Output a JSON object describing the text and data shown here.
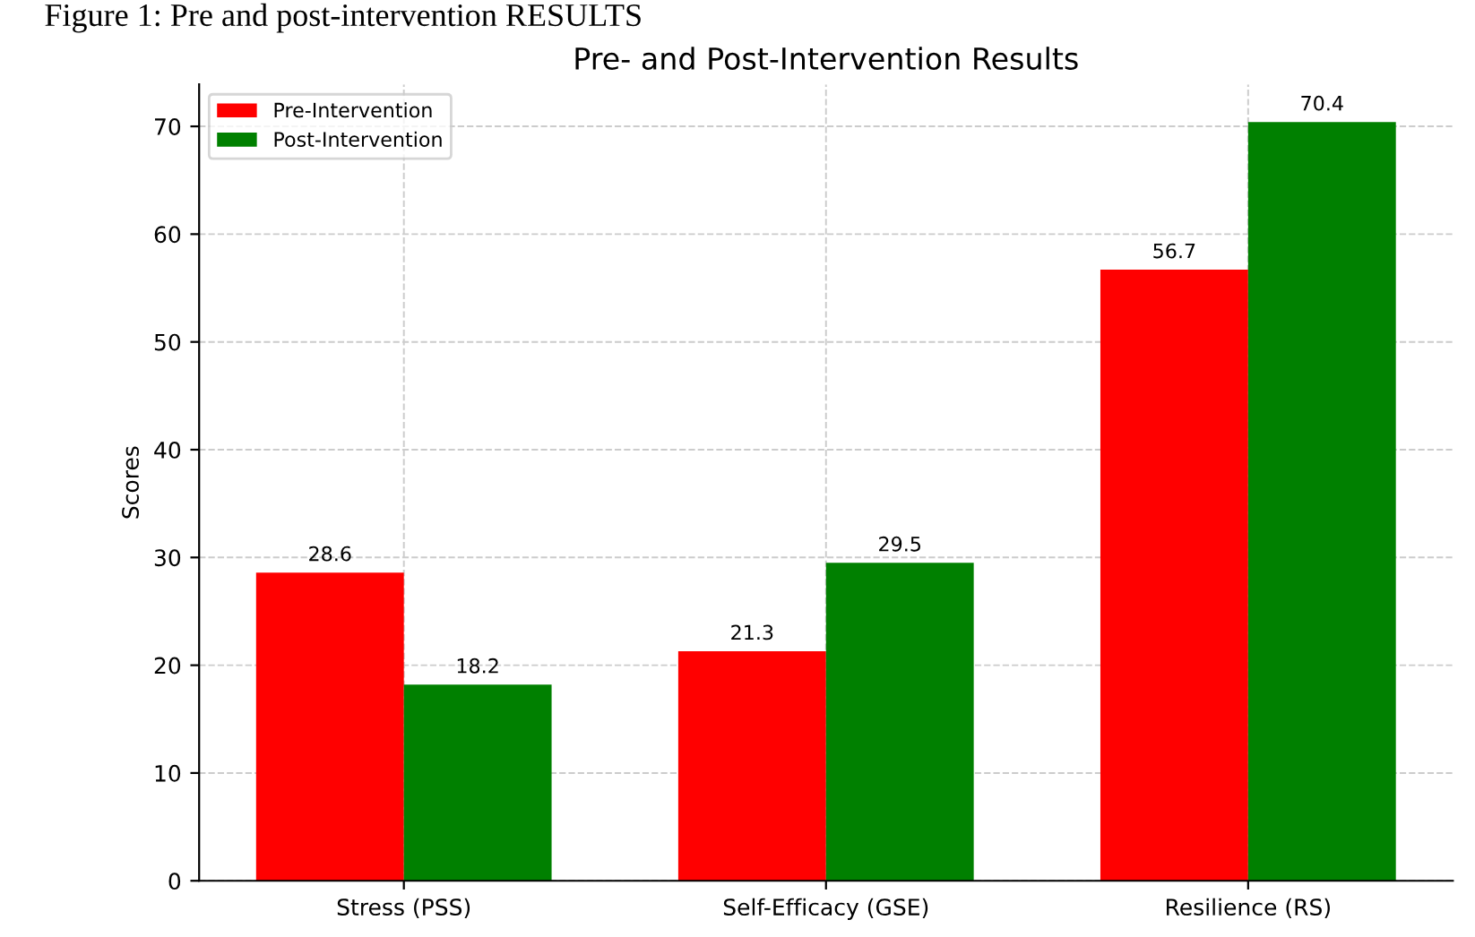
{
  "chart_data": {
    "type": "bar",
    "title": "Pre- and Post-Intervention Results",
    "ylabel": "Scores",
    "annotations": [
      "Figure 1: Pre and post-intervention RESULTS"
    ],
    "categories": [
      "Stress (PSS)",
      "Self-Efficacy (GSE)",
      "Resilience (RS)"
    ],
    "series": [
      {
        "name": "Pre-Intervention",
        "color": "#ff0000",
        "values": [
          28.6,
          21.3,
          56.7
        ]
      },
      {
        "name": "Post-Intervention",
        "color": "#008000",
        "values": [
          18.2,
          29.5,
          70.4
        ]
      }
    ],
    "ylim": [
      0,
      73.9
    ],
    "yticks": [
      0,
      10,
      20,
      30,
      40,
      50,
      60,
      70
    ],
    "grid": true,
    "legend": "top left",
    "data_labels": true
  }
}
